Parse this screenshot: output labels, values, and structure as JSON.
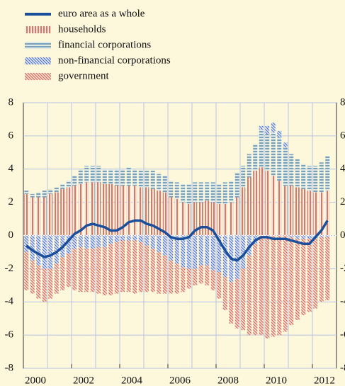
{
  "chart_data": {
    "type": "bar",
    "categories": [
      "2000",
      null,
      null,
      null,
      null,
      null,
      null,
      null,
      "2002",
      null,
      null,
      null,
      null,
      null,
      null,
      null,
      "2004",
      null,
      null,
      null,
      null,
      null,
      null,
      null,
      "2006",
      null,
      null,
      null,
      null,
      null,
      null,
      null,
      "2008",
      null,
      null,
      null,
      null,
      null,
      null,
      null,
      "2010",
      null,
      null,
      null,
      null,
      null,
      null,
      null,
      "2012",
      null,
      null
    ],
    "series": [
      {
        "name": "euro area as a whole",
        "type": "line",
        "color": "#1a4f9c",
        "values": [
          -0.6,
          -0.9,
          -1.1,
          -1.3,
          -1.2,
          -1.0,
          -0.7,
          -0.3,
          0.1,
          0.3,
          0.6,
          0.7,
          0.6,
          0.5,
          0.3,
          0.3,
          0.5,
          0.8,
          0.9,
          0.9,
          0.7,
          0.6,
          0.4,
          0.2,
          -0.1,
          -0.2,
          -0.2,
          -0.1,
          0.3,
          0.5,
          0.5,
          0.3,
          -0.3,
          -0.9,
          -1.4,
          -1.5,
          -1.2,
          -0.7,
          -0.3,
          -0.1,
          -0.1,
          -0.2,
          -0.2,
          -0.2,
          -0.3,
          -0.4,
          -0.5,
          -0.5,
          -0.1,
          0.3,
          0.9
        ]
      },
      {
        "name": "households",
        "type": "bar",
        "color": "#cf5a48",
        "pattern": "vertical",
        "values": [
          2.5,
          2.3,
          2.3,
          2.3,
          2.5,
          2.6,
          2.8,
          2.9,
          3.0,
          3.1,
          3.2,
          3.2,
          3.2,
          3.1,
          3.1,
          3.0,
          3.0,
          3.0,
          3.0,
          2.9,
          2.9,
          2.8,
          2.7,
          2.6,
          2.3,
          2.2,
          2.0,
          1.9,
          2.0,
          2.0,
          2.1,
          2.0,
          1.9,
          1.9,
          2.0,
          2.3,
          2.9,
          3.5,
          3.9,
          4.1,
          3.9,
          3.6,
          3.3,
          3.0,
          3.0,
          2.9,
          2.8,
          2.7,
          2.6,
          2.6,
          2.7
        ]
      },
      {
        "name": "financial corporations",
        "type": "bar",
        "color": "#5f8fae",
        "pattern": "horizontal",
        "values": [
          0.2,
          0.2,
          0.3,
          0.4,
          0.3,
          0.3,
          0.3,
          0.4,
          0.6,
          0.9,
          1.0,
          1.0,
          1.0,
          0.9,
          0.9,
          1.0,
          1.0,
          1.1,
          1.0,
          1.0,
          1.0,
          1.1,
          1.0,
          1.0,
          1.0,
          1.0,
          1.1,
          1.2,
          1.2,
          1.2,
          1.1,
          1.2,
          1.2,
          1.3,
          1.3,
          1.5,
          1.3,
          1.4,
          1.6,
          2.3,
          2.2,
          2.6,
          2.6,
          2.3,
          1.9,
          1.7,
          1.5,
          1.5,
          1.6,
          1.8,
          2.1
        ]
      },
      {
        "name": "non-financial corporations",
        "type": "bar",
        "color": "#4a6fc9",
        "pattern": "diagonal",
        "values": [
          -1.0,
          -1.5,
          -1.8,
          -2.0,
          -2.0,
          -1.7,
          -1.3,
          -1.1,
          -0.8,
          -0.7,
          -0.8,
          -0.8,
          -0.7,
          -0.7,
          -0.5,
          -0.4,
          -0.3,
          -0.3,
          -0.3,
          -0.4,
          -0.6,
          -0.8,
          -1.0,
          -1.2,
          -1.5,
          -1.7,
          -1.9,
          -2.0,
          -2.0,
          -1.8,
          -1.8,
          -2.1,
          -2.2,
          -2.5,
          -2.8,
          -2.6,
          -2.0,
          -1.2,
          -0.5,
          0.2,
          0.5,
          0.6,
          0.4,
          0.3,
          -0.1,
          -0.2,
          -0.2,
          -0.2,
          -0.2,
          -0.1,
          -0.1
        ]
      },
      {
        "name": "government",
        "type": "bar",
        "color": "#d66a58",
        "pattern": "diagonal-dense",
        "values": [
          -2.3,
          -2.0,
          -2.0,
          -2.0,
          -1.8,
          -1.8,
          -2.0,
          -2.0,
          -2.5,
          -2.7,
          -2.6,
          -2.6,
          -2.8,
          -2.9,
          -3.1,
          -3.1,
          -3.1,
          -3.1,
          -3.2,
          -3.0,
          -2.8,
          -2.6,
          -2.5,
          -2.3,
          -2.0,
          -1.8,
          -1.5,
          -1.2,
          -1.0,
          -1.1,
          -1.2,
          -1.2,
          -1.6,
          -2.0,
          -2.5,
          -3.0,
          -3.7,
          -4.8,
          -5.5,
          -6.0,
          -6.2,
          -6.1,
          -6.0,
          -5.8,
          -5.3,
          -4.9,
          -4.6,
          -4.4,
          -4.2,
          -3.9,
          -3.8
        ]
      }
    ],
    "ylim": [
      -8,
      8
    ],
    "yticks": [
      -8,
      -6,
      -4,
      -2,
      0,
      2,
      4,
      6,
      8
    ],
    "grid": true,
    "legend": "top-left"
  }
}
